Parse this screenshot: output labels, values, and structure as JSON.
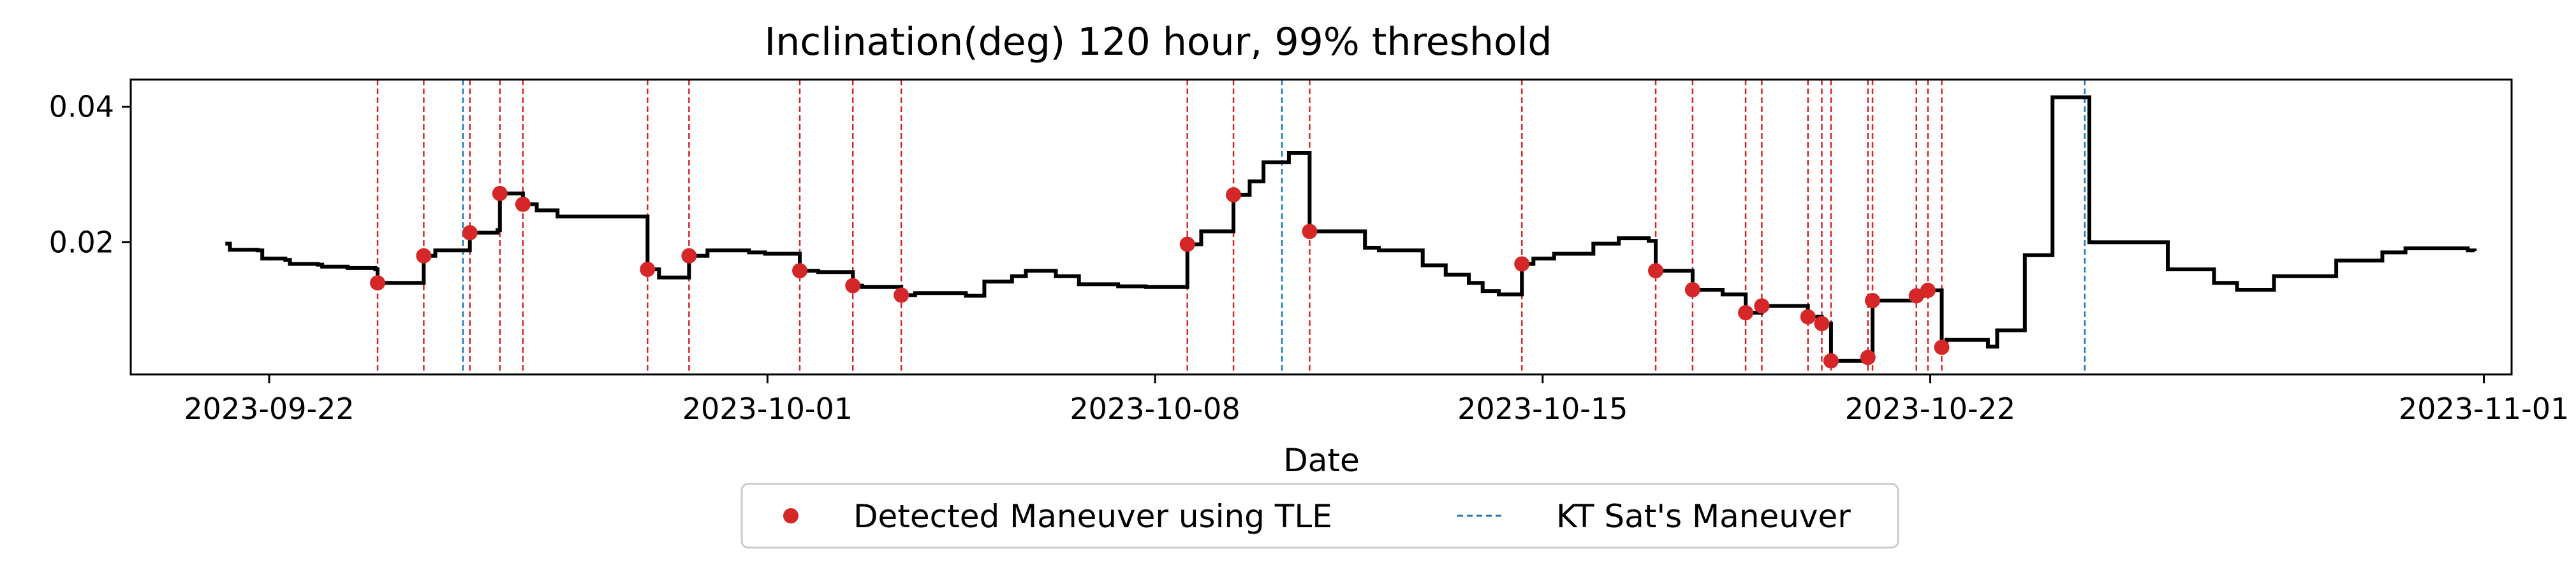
{
  "chart_data": {
    "type": "line",
    "title": "Inclination(deg) 120 hour, 99% threshold",
    "xlabel": "Date",
    "ylabel": "",
    "xlim": [
      "2023-09-19T12:00",
      "2023-11-01T12:00"
    ],
    "ylim": [
      0.0005,
      0.044
    ],
    "x_ticks": [
      "2023-09-22",
      "2023-10-01",
      "2023-10-08",
      "2023-10-15",
      "2023-10-22",
      "2023-11-01"
    ],
    "y_ticks": [
      0.02,
      0.04
    ],
    "y_tick_labels": [
      "0.02",
      "0.04"
    ],
    "grid": false,
    "legend_position": "bottom-center",
    "series": [
      {
        "color": "#000000",
        "style": "step",
        "points": [
          [
            "2023-09-21T05:00",
            0.0198
          ],
          [
            "2023-09-21T07:00",
            0.0189
          ],
          [
            "2023-09-21T19:00",
            0.0188
          ],
          [
            "2023-09-21T21:00",
            0.0176
          ],
          [
            "2023-09-22T07:00",
            0.0174
          ],
          [
            "2023-09-22T09:00",
            0.0168
          ],
          [
            "2023-09-22T21:00",
            0.0167
          ],
          [
            "2023-09-22T23:00",
            0.0164
          ],
          [
            "2023-09-23T10:00",
            0.0162
          ],
          [
            "2023-09-23T22:00",
            0.016
          ],
          [
            "2023-09-23T23:00",
            0.014
          ],
          [
            "2023-09-24T19:00",
            0.018
          ],
          [
            "2023-09-25T00:00",
            0.0188
          ],
          [
            "2023-09-25T15:00",
            0.0214
          ],
          [
            "2023-09-26T03:00",
            0.0218
          ],
          [
            "2023-09-26T04:00",
            0.0272
          ],
          [
            "2023-09-26T14:00",
            0.0256
          ],
          [
            "2023-09-26T20:00",
            0.0247
          ],
          [
            "2023-09-27T05:00",
            0.0238
          ],
          [
            "2023-09-28T19:00",
            0.0238
          ],
          [
            "2023-09-28T20:00",
            0.016
          ],
          [
            "2023-09-29T01:00",
            0.0148
          ],
          [
            "2023-09-29T14:00",
            0.018
          ],
          [
            "2023-09-29T22:00",
            0.0188
          ],
          [
            "2023-09-30T16:00",
            0.0185
          ],
          [
            "2023-09-30T23:00",
            0.0183
          ],
          [
            "2023-10-01T14:00",
            0.0158
          ],
          [
            "2023-10-01T22:00",
            0.0156
          ],
          [
            "2023-10-02T13:00",
            0.0136
          ],
          [
            "2023-10-02T17:00",
            0.0134
          ],
          [
            "2023-10-03T10:00",
            0.0122
          ],
          [
            "2023-10-03T16:00",
            0.0125
          ],
          [
            "2023-10-04T14:00",
            0.0121
          ],
          [
            "2023-10-04T22:00",
            0.0142
          ],
          [
            "2023-10-05T10:00",
            0.015
          ],
          [
            "2023-10-05T16:00",
            0.0158
          ],
          [
            "2023-10-06T05:00",
            0.015
          ],
          [
            "2023-10-06T15:00",
            0.0138
          ],
          [
            "2023-10-07T08:00",
            0.0135
          ],
          [
            "2023-10-07T20:00",
            0.0134
          ],
          [
            "2023-10-08T14:00",
            0.0197
          ],
          [
            "2023-10-08T20:00",
            0.0216
          ],
          [
            "2023-10-09T10:00",
            0.027
          ],
          [
            "2023-10-09T17:00",
            0.029
          ],
          [
            "2023-10-09T23:00",
            0.0318
          ],
          [
            "2023-10-10T10:00",
            0.0332
          ],
          [
            "2023-10-10T19:00",
            0.0216
          ],
          [
            "2023-10-11T19:00",
            0.0192
          ],
          [
            "2023-10-12T01:00",
            0.0188
          ],
          [
            "2023-10-12T20:00",
            0.0166
          ],
          [
            "2023-10-13T06:00",
            0.0152
          ],
          [
            "2023-10-13T16:00",
            0.014
          ],
          [
            "2023-10-13T22:00",
            0.0128
          ],
          [
            "2023-10-14T05:00",
            0.0123
          ],
          [
            "2023-10-14T15:00",
            0.0168
          ],
          [
            "2023-10-14T20:00",
            0.0176
          ],
          [
            "2023-10-15T05:00",
            0.0183
          ],
          [
            "2023-10-15T22:00",
            0.0198
          ],
          [
            "2023-10-16T09:00",
            0.0206
          ],
          [
            "2023-10-16T22:00",
            0.0202
          ],
          [
            "2023-10-17T01:00",
            0.0158
          ],
          [
            "2023-10-17T17:00",
            0.013
          ],
          [
            "2023-10-18T06:00",
            0.0123
          ],
          [
            "2023-10-18T16:00",
            0.0096
          ],
          [
            "2023-10-18T23:00",
            0.0106
          ],
          [
            "2023-10-19T19:00",
            0.009
          ],
          [
            "2023-10-20T01:00",
            0.008
          ],
          [
            "2023-10-20T05:00",
            0.0025
          ],
          [
            "2023-10-20T21:00",
            0.003
          ],
          [
            "2023-10-20T23:00",
            0.0114
          ],
          [
            "2023-10-21T18:00",
            0.0121
          ],
          [
            "2023-10-21T23:00",
            0.0129
          ],
          [
            "2023-10-22T05:00",
            0.0045
          ],
          [
            "2023-10-22T07:00",
            0.0056
          ],
          [
            "2023-10-23T01:00",
            0.0046
          ],
          [
            "2023-10-23T05:00",
            0.007
          ],
          [
            "2023-10-23T17:00",
            0.0181
          ],
          [
            "2023-10-24T05:00",
            0.0414
          ],
          [
            "2023-10-24T21:00",
            0.02
          ],
          [
            "2023-10-26T07:00",
            0.016
          ],
          [
            "2023-10-27T03:00",
            0.014
          ],
          [
            "2023-10-27T13:00",
            0.013
          ],
          [
            "2023-10-28T05:00",
            0.015
          ],
          [
            "2023-10-29T08:00",
            0.0173
          ],
          [
            "2023-10-30T04:00",
            0.0185
          ],
          [
            "2023-10-30T14:00",
            0.0191
          ],
          [
            "2023-10-31T17:00",
            0.0188
          ],
          [
            "2023-10-31T20:00",
            0.0187
          ]
        ]
      }
    ],
    "scatter": {
      "name": "Detected Maneuver using TLE",
      "color": "#d62728",
      "points": [
        [
          "2023-09-23T23:00",
          0.014
        ],
        [
          "2023-09-24T19:00",
          0.018
        ],
        [
          "2023-09-25T15:00",
          0.0214
        ],
        [
          "2023-09-26T04:00",
          0.0272
        ],
        [
          "2023-09-26T14:00",
          0.0256
        ],
        [
          "2023-09-28T20:00",
          0.016
        ],
        [
          "2023-09-29T14:00",
          0.018
        ],
        [
          "2023-10-01T14:00",
          0.0158
        ],
        [
          "2023-10-02T13:00",
          0.0136
        ],
        [
          "2023-10-03T10:00",
          0.0122
        ],
        [
          "2023-10-08T14:00",
          0.0197
        ],
        [
          "2023-10-09T10:00",
          0.027
        ],
        [
          "2023-10-10T19:00",
          0.0216
        ],
        [
          "2023-10-14T15:00",
          0.0168
        ],
        [
          "2023-10-17T01:00",
          0.0158
        ],
        [
          "2023-10-17T17:00",
          0.013
        ],
        [
          "2023-10-18T16:00",
          0.0096
        ],
        [
          "2023-10-18T23:00",
          0.0106
        ],
        [
          "2023-10-19T19:00",
          0.009
        ],
        [
          "2023-10-20T01:00",
          0.008
        ],
        [
          "2023-10-20T05:00",
          0.0025
        ],
        [
          "2023-10-20T21:00",
          0.003
        ],
        [
          "2023-10-20T23:00",
          0.0114
        ],
        [
          "2023-10-21T18:00",
          0.0121
        ],
        [
          "2023-10-21T23:00",
          0.0129
        ],
        [
          "2023-10-22T05:00",
          0.0045
        ]
      ]
    },
    "red_vlines": {
      "color": "#d62728",
      "dates": [
        "2023-09-23T23:00",
        "2023-09-24T19:00",
        "2023-09-25T15:00",
        "2023-09-26T04:00",
        "2023-09-26T14:00",
        "2023-09-28T20:00",
        "2023-09-29T14:00",
        "2023-10-01T14:00",
        "2023-10-02T13:00",
        "2023-10-03T10:00",
        "2023-10-08T14:00",
        "2023-10-09T10:00",
        "2023-10-10T19:00",
        "2023-10-14T15:00",
        "2023-10-17T01:00",
        "2023-10-17T17:00",
        "2023-10-18T16:00",
        "2023-10-18T23:00",
        "2023-10-19T19:00",
        "2023-10-20T01:00",
        "2023-10-20T05:00",
        "2023-10-20T21:00",
        "2023-10-20T23:00",
        "2023-10-21T18:00",
        "2023-10-21T23:00",
        "2023-10-22T05:00"
      ]
    },
    "kt_maneuvers": {
      "name": "KT Sat's Maneuver",
      "color": "#1f77b4",
      "dates": [
        "2023-09-25T12:00",
        "2023-10-10T07:00",
        "2023-10-24T19:00"
      ]
    }
  }
}
